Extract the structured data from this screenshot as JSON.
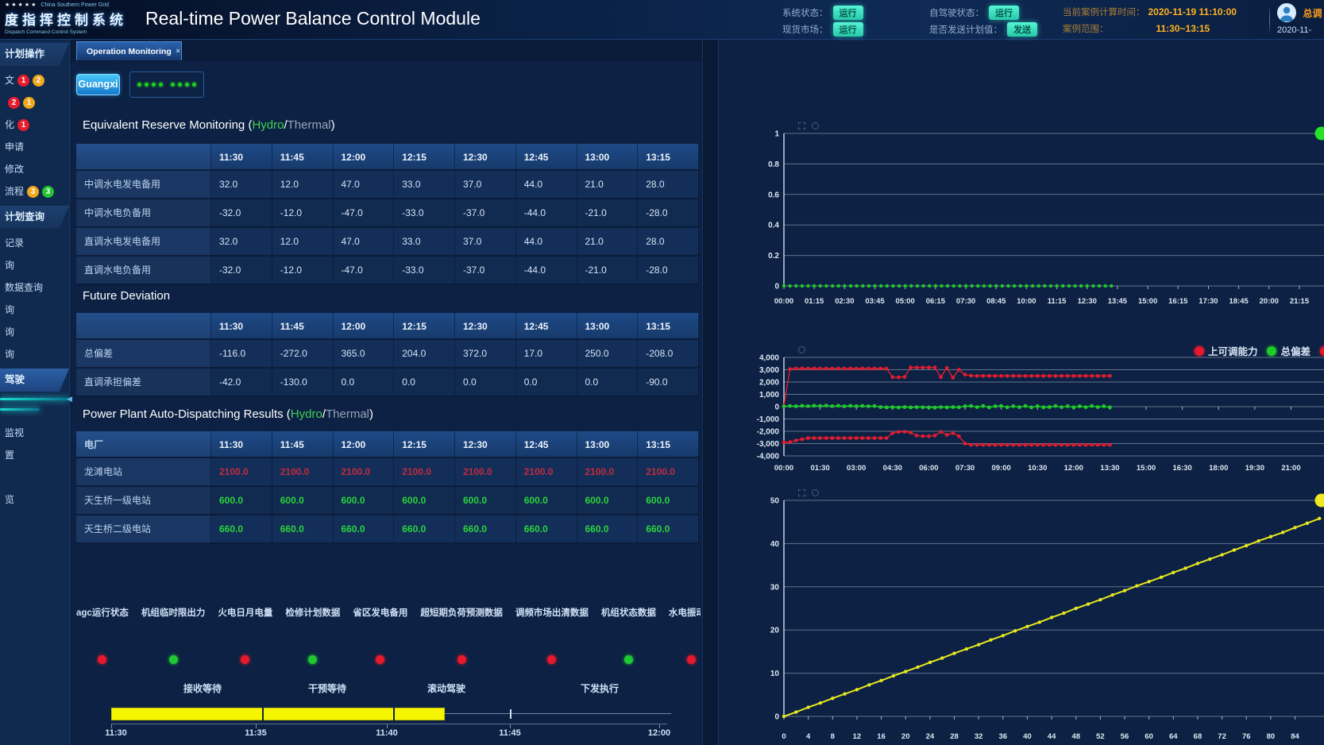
{
  "header": {
    "brand": {
      "stars": "★★★★★",
      "grid_name": "China Southern Power Grid",
      "system_cn": "度指挥控制系统",
      "system_en": "Dispatch Command Control System"
    },
    "title": "Real-time Power Balance Control Module",
    "status_groups": [
      {
        "rows": [
          {
            "label": "系统状态：",
            "pill": "运行"
          },
          {
            "label": "现货市场：",
            "pill": "运行"
          }
        ]
      },
      {
        "rows": [
          {
            "label": "自驾驶状态：",
            "pill": "运行"
          },
          {
            "label": "是否发送计划值：",
            "pill": "发送"
          }
        ]
      }
    ],
    "case_info": {
      "rows": [
        {
          "label": "当前案例计算时间：",
          "value": "2020-11-19 11:10:00"
        },
        {
          "label": "案例范围：",
          "value": "11:30~13:15"
        }
      ]
    },
    "user": {
      "name": "总调",
      "date": "2020-11-"
    }
  },
  "tabs": {
    "operation_monitoring": "Operation Monitoring",
    "close_icon": "×"
  },
  "toolbar": {
    "region_button": "Guangxi"
  },
  "sidebar": {
    "collapse_icon": "◀",
    "sections": [
      {
        "header": "计划操作",
        "active": false,
        "items": [
          {
            "label": "文",
            "badges": [
              {
                "n": "1",
                "color": "#e81c2c"
              },
              {
                "n": "2",
                "color": "#f0a81c"
              }
            ]
          },
          {
            "label": "",
            "badges": [
              {
                "n": "2",
                "color": "#e81c2c"
              },
              {
                "n": "1",
                "color": "#f0a81c"
              }
            ]
          },
          {
            "label": "化",
            "badges": [
              {
                "n": "1",
                "color": "#e81c2c"
              }
            ]
          },
          {
            "label": "申请",
            "badges": []
          },
          {
            "label": "修改",
            "badges": []
          },
          {
            "label": "流程",
            "badges": [
              {
                "n": "3",
                "color": "#f0a81c"
              },
              {
                "n": "3",
                "color": "#25c532"
              }
            ]
          }
        ]
      },
      {
        "header": "计划查询",
        "active": false,
        "items": [
          {
            "label": "记录",
            "badges": []
          },
          {
            "label": "询",
            "badges": []
          },
          {
            "label": "数据查询",
            "badges": []
          },
          {
            "label": "询",
            "badges": []
          },
          {
            "label": "询",
            "badges": []
          },
          {
            "label": "询",
            "badges": []
          }
        ]
      },
      {
        "header": "驾驶",
        "active": true,
        "glow_bars": true,
        "items": [
          {
            "label": "监视",
            "badges": []
          },
          {
            "label": "置",
            "badges": []
          },
          {
            "label": "览",
            "badges": [],
            "spacer": true
          }
        ]
      }
    ]
  },
  "tables": {
    "time_columns": [
      "11:30",
      "11:45",
      "12:00",
      "12:15",
      "12:30",
      "12:45",
      "13:00",
      "13:15"
    ],
    "reserve": {
      "title_parts": {
        "pre": "Equivalent Reserve Monitoring (",
        "hydro": "Hydro",
        "sep": "/",
        "thermal": "Thermal",
        "post": ")"
      },
      "first_col": "",
      "rows": [
        {
          "label": "中调水电发电备用",
          "values": [
            "32.0",
            "12.0",
            "47.0",
            "33.0",
            "37.0",
            "44.0",
            "21.0",
            "28.0"
          ]
        },
        {
          "label": "中调水电负备用",
          "values": [
            "-32.0",
            "-12.0",
            "-47.0",
            "-33.0",
            "-37.0",
            "-44.0",
            "-21.0",
            "-28.0"
          ]
        },
        {
          "label": "直调水电发电备用",
          "values": [
            "32.0",
            "12.0",
            "47.0",
            "33.0",
            "37.0",
            "44.0",
            "21.0",
            "28.0"
          ]
        },
        {
          "label": "直调水电负备用",
          "values": [
            "-32.0",
            "-12.0",
            "-47.0",
            "-33.0",
            "-37.0",
            "-44.0",
            "-21.0",
            "-28.0"
          ]
        }
      ]
    },
    "deviation": {
      "title": "Future Deviation",
      "first_col": "",
      "rows": [
        {
          "label": "总偏差",
          "values": [
            "-116.0",
            "-272.0",
            "365.0",
            "204.0",
            "372.0",
            "17.0",
            "250.0",
            "-208.0"
          ]
        },
        {
          "label": "直调承担偏差",
          "values": [
            "-42.0",
            "-130.0",
            "0.0",
            "0.0",
            "0.0",
            "0.0",
            "0.0",
            "-90.0"
          ]
        }
      ]
    },
    "dispatch": {
      "title_parts": {
        "pre": "Power Plant Auto-Dispatching Results (",
        "hydro": "Hydro",
        "sep": "/",
        "thermal": "Thermal",
        "post": ")"
      },
      "first_col": "电厂",
      "rows": [
        {
          "label": "龙滩电站",
          "color": "#c22b3e",
          "values": [
            "2100.0",
            "2100.0",
            "2100.0",
            "2100.0",
            "2100.0",
            "2100.0",
            "2100.0",
            "2100.0"
          ]
        },
        {
          "label": "天生桥一级电站",
          "color": "#2bd53c",
          "values": [
            "600.0",
            "600.0",
            "600.0",
            "600.0",
            "600.0",
            "600.0",
            "600.0",
            "600.0"
          ]
        },
        {
          "label": "天生桥二级电站",
          "color": "#2bd53c",
          "values": [
            "660.0",
            "660.0",
            "660.0",
            "660.0",
            "660.0",
            "660.0",
            "660.0",
            "660.0"
          ]
        }
      ]
    }
  },
  "data_status": {
    "items": [
      {
        "label": "agc运行状态",
        "color": "#e8192c"
      },
      {
        "label": "机组临时限出力",
        "color": "#1fc832"
      },
      {
        "label": "火电日月电量",
        "color": "#e8192c"
      },
      {
        "label": "检修计划数据",
        "color": "#1fc832"
      },
      {
        "label": "省区发电备用",
        "color": "#e8192c"
      },
      {
        "label": "超短期负荷预测数据",
        "color": "#e8192c"
      },
      {
        "label": "调频市场出清数据",
        "color": "#e8192c"
      },
      {
        "label": "机组状态数据",
        "color": "#1fc832"
      },
      {
        "label": "水电振动区",
        "color": "#e8192c"
      }
    ]
  },
  "timeline": {
    "stages": [
      "接收等待",
      "干预等待",
      "滚动驾驶",
      "下发执行"
    ],
    "labels": [
      "11:30",
      "11:35",
      "11:40",
      "11:45",
      "12:00"
    ],
    "fill_color": "#f6f600"
  },
  "chart_data": [
    {
      "id": "chart-auto-drive-flag",
      "type": "scatter",
      "xmin": 0,
      "xmax": 22.2,
      "ymin": 0,
      "ymax": 1,
      "grid": true,
      "legend_position": "none",
      "x_ticks": [
        "00:00",
        "01:15",
        "02:30",
        "03:45",
        "05:00",
        "06:15",
        "07:30",
        "08:45",
        "10:00",
        "11:15",
        "12:30",
        "13:45",
        "15:00",
        "16:15",
        "17:30",
        "18:45",
        "20:00",
        "21:15"
      ],
      "x_tick_values": [
        0,
        1.25,
        2.5,
        3.75,
        5,
        6.25,
        7.5,
        8.75,
        10,
        11.25,
        12.5,
        13.75,
        15,
        16.25,
        17.5,
        18.75,
        20,
        21.25
      ],
      "y_ticks": [
        {
          "v": 0,
          "label": "0"
        },
        {
          "v": 0.2,
          "label": "0.2"
        },
        {
          "v": 0.4,
          "label": "0.4"
        },
        {
          "v": 0.6,
          "label": "0.6"
        },
        {
          "v": 0.8,
          "label": "0.8"
        },
        {
          "v": 1,
          "label": "1"
        }
      ],
      "series": [
        {
          "name": "flag",
          "color": "#1ecb28",
          "x_start": 0,
          "x_step": 0.25,
          "r": 2.2,
          "line": false,
          "values": [
            0,
            0,
            0,
            0,
            0,
            0,
            0,
            0,
            0,
            0,
            0,
            0,
            0,
            0,
            0,
            0,
            0,
            0,
            0,
            0,
            0,
            0,
            0,
            0,
            0,
            0,
            0,
            0,
            0,
            0,
            0,
            0,
            0,
            0,
            0,
            0,
            0,
            0,
            0,
            0,
            0,
            0,
            0,
            0,
            0,
            0,
            0,
            0,
            0,
            0,
            0,
            0,
            0,
            0,
            0
          ]
        }
      ],
      "edge_marker": {
        "color": "#2ae02a",
        "y": 1
      }
    },
    {
      "id": "chart-capacity-deviation",
      "type": "line",
      "xmin": 0,
      "xmax": 22.3,
      "ymin": -4000,
      "ymax": 4000,
      "grid": true,
      "legend_position": "top-right",
      "x_ticks": [
        "00:00",
        "01:30",
        "03:00",
        "04:30",
        "06:00",
        "07:30",
        "09:00",
        "10:30",
        "12:00",
        "13:30",
        "15:00",
        "16:30",
        "18:00",
        "19:30",
        "21:00"
      ],
      "x_tick_values": [
        0,
        1.5,
        3,
        4.5,
        6,
        7.5,
        9,
        10.5,
        12,
        13.5,
        15,
        16.5,
        18,
        19.5,
        21
      ],
      "y_ticks": [
        {
          "v": 4000,
          "label": "4,000"
        },
        {
          "v": 3000,
          "label": "3,000"
        },
        {
          "v": 2000,
          "label": "2,000"
        },
        {
          "v": 1000,
          "label": "1,000"
        },
        {
          "v": 0,
          "label": "0"
        },
        {
          "v": -1000,
          "label": "-1,000"
        },
        {
          "v": -2000,
          "label": "-2,000"
        },
        {
          "v": -3000,
          "label": "-3,000"
        },
        {
          "v": -4000,
          "label": "-4,000"
        }
      ],
      "legend": [
        {
          "label": "上可调能力",
          "color": "#e8192c"
        },
        {
          "label": "总偏差",
          "color": "#1ecb28"
        },
        {
          "label": "",
          "color": "#e8192c"
        }
      ],
      "series": [
        {
          "name": "up-capacity",
          "color": "#e01c30",
          "x_start": 0,
          "x_step": 0.25,
          "r": 2.4,
          "line": true,
          "values": [
            50,
            3050,
            3100,
            3100,
            3100,
            3100,
            3100,
            3100,
            3100,
            3100,
            3100,
            3100,
            3100,
            3100,
            3100,
            3100,
            3100,
            3100,
            2400,
            2380,
            2420,
            3180,
            3180,
            3180,
            3180,
            3180,
            2400,
            3150,
            2350,
            3000,
            2600,
            2520,
            2500,
            2500,
            2500,
            2500,
            2500,
            2500,
            2500,
            2500,
            2500,
            2500,
            2500,
            2500,
            2500,
            2500,
            2500,
            2500,
            2500,
            2500,
            2500,
            2500,
            2500,
            2500,
            2500
          ]
        },
        {
          "name": "total-deviation",
          "color": "#1ecb28",
          "x_start": 0,
          "x_step": 0.25,
          "r": 2.4,
          "line": true,
          "values": [
            20,
            60,
            30,
            70,
            40,
            80,
            50,
            90,
            40,
            80,
            30,
            70,
            40,
            60,
            30,
            50,
            -30,
            -60,
            -40,
            -70,
            -30,
            -60,
            -40,
            -50,
            -60,
            -80,
            -40,
            -60,
            -30,
            -50,
            40,
            60,
            -40,
            50,
            -60,
            40,
            60,
            -50,
            40,
            -40,
            50,
            -60,
            40,
            -50,
            -30,
            50,
            -40,
            40,
            -50,
            30,
            -40,
            50,
            -30,
            40,
            -50
          ]
        },
        {
          "name": "down-capacity",
          "color": "#e01c30",
          "x_start": 0,
          "x_step": 0.25,
          "r": 2.4,
          "line": true,
          "values": [
            -2900,
            -2880,
            -2750,
            -2650,
            -2550,
            -2550,
            -2550,
            -2550,
            -2550,
            -2550,
            -2550,
            -2550,
            -2550,
            -2550,
            -2550,
            -2550,
            -2550,
            -2550,
            -2150,
            -2050,
            -2030,
            -2100,
            -2350,
            -2400,
            -2400,
            -2350,
            -2050,
            -2300,
            -2150,
            -2400,
            -3000,
            -3100,
            -3100,
            -3100,
            -3100,
            -3100,
            -3100,
            -3100,
            -3100,
            -3100,
            -3100,
            -3100,
            -3100,
            -3100,
            -3100,
            -3100,
            -3100,
            -3100,
            -3100,
            -3100,
            -3100,
            -3100,
            -3100,
            -3100,
            -3100
          ]
        }
      ]
    },
    {
      "id": "chart-ramp",
      "type": "line",
      "xmin": 0,
      "xmax": 88.5,
      "ymin": 0,
      "ymax": 50,
      "grid": true,
      "legend_position": "none",
      "x_ticks": [
        "0",
        "4",
        "8",
        "12",
        "16",
        "20",
        "24",
        "28",
        "32",
        "36",
        "40",
        "44",
        "48",
        "52",
        "56",
        "60",
        "64",
        "68",
        "72",
        "76",
        "80",
        "84"
      ],
      "x_tick_values": [
        0,
        4,
        8,
        12,
        16,
        20,
        24,
        28,
        32,
        36,
        40,
        44,
        48,
        52,
        56,
        60,
        64,
        68,
        72,
        76,
        80,
        84
      ],
      "y_ticks": [
        {
          "v": 0,
          "label": "0"
        },
        {
          "v": 10,
          "label": "10"
        },
        {
          "v": 20,
          "label": "20"
        },
        {
          "v": 30,
          "label": "30"
        },
        {
          "v": 40,
          "label": "40"
        },
        {
          "v": 50,
          "label": "50"
        }
      ],
      "series": [
        {
          "name": "ramp",
          "color": "#e8e820",
          "x_start": 0,
          "x_step": 2,
          "r": 2.2,
          "line": true,
          "lw": 2,
          "values": [
            0,
            1.0,
            2.1,
            3.1,
            4.2,
            5.2,
            6.2,
            7.3,
            8.3,
            9.4,
            10.4,
            11.4,
            12.5,
            13.5,
            14.6,
            15.6,
            16.6,
            17.7,
            18.7,
            19.8,
            20.8,
            21.8,
            22.9,
            23.9,
            25.0,
            26.0,
            27.0,
            28.1,
            29.1,
            30.2,
            31.2,
            32.2,
            33.3,
            34.3,
            35.4,
            36.4,
            37.4,
            38.5,
            39.5,
            40.6,
            41.6,
            42.6,
            43.7,
            44.7,
            45.8
          ]
        }
      ],
      "edge_marker": {
        "color": "#f0e820",
        "y": 50
      }
    }
  ]
}
